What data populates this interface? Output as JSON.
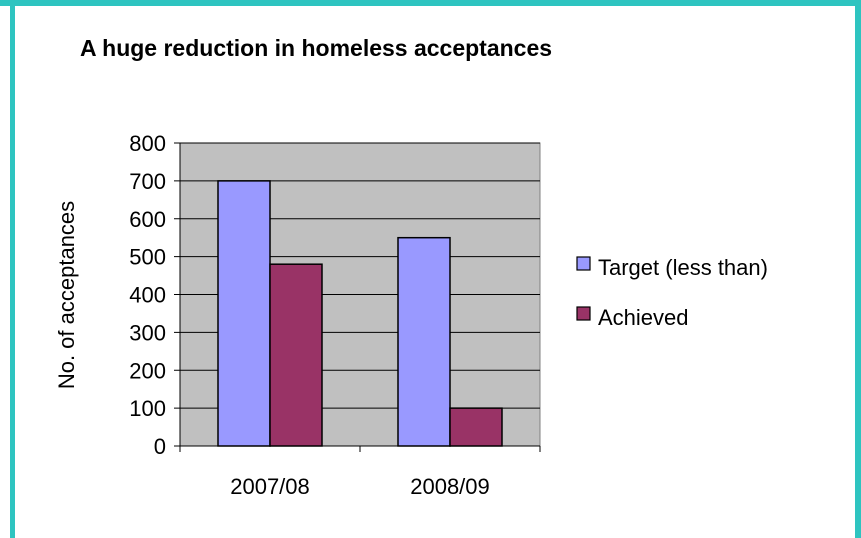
{
  "colors": {
    "frame": "#2ec4c0",
    "plot_background": "#c0c0c0",
    "target": "#9999ff",
    "achieved": "#993366"
  },
  "chart_data": {
    "type": "bar",
    "title": "A huge reduction in homeless acceptances",
    "xlabel": "",
    "ylabel": "No. of acceptances",
    "categories": [
      "2007/08",
      "2008/09"
    ],
    "series": [
      {
        "name": "Target (less than)",
        "values": [
          700,
          550
        ]
      },
      {
        "name": "Achieved",
        "values": [
          480,
          100
        ]
      }
    ],
    "ylim": [
      0,
      800
    ],
    "yticks": [
      0,
      100,
      200,
      300,
      400,
      500,
      600,
      700,
      800
    ],
    "grid": true,
    "legend": "right"
  }
}
